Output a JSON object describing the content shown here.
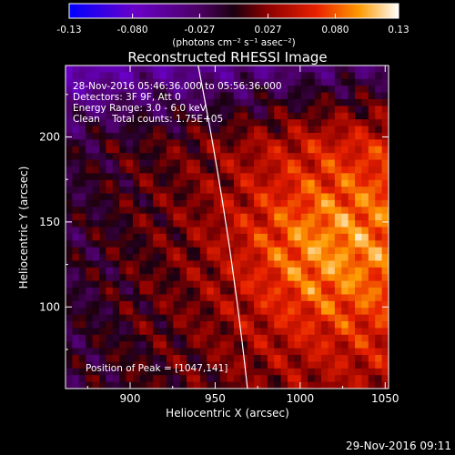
{
  "colorbar": {
    "ticks": [
      "-0.13",
      "-0.080",
      "-0.027",
      "0.027",
      "0.080",
      "0.13"
    ],
    "unit_label": "(photons cm⁻² s⁻¹ asec⁻²)"
  },
  "chart_data": {
    "type": "heatmap",
    "title": "Reconstructed RHESSI Image",
    "xlabel": "Heliocentric X (arcsec)",
    "ylabel": "Heliocentric Y (arcsec)",
    "xlim": [
      862,
      1052
    ],
    "ylim": [
      52,
      242
    ],
    "x_ticks": [
      900,
      950,
      1000,
      1050
    ],
    "y_ticks": [
      100,
      150,
      200
    ],
    "color_range": [
      -0.13,
      0.13
    ],
    "annotations": [
      "28-Nov-2016 05:46:36.000 to 05:56:36.000",
      "Detectors: 3F 9F, Att 0",
      "Energy Range: 3.0 - 6.0 keV",
      "Clean    Total counts: 1.75E+05"
    ],
    "peak_label": "Position of Peak = [1047,141]",
    "peak": {
      "x": 1047,
      "y": 141
    },
    "limb_x_at_top": 940,
    "limb_x_at_bottom": 969
  },
  "footer": {
    "timestamp": "29-Nov-2016 09:11"
  }
}
